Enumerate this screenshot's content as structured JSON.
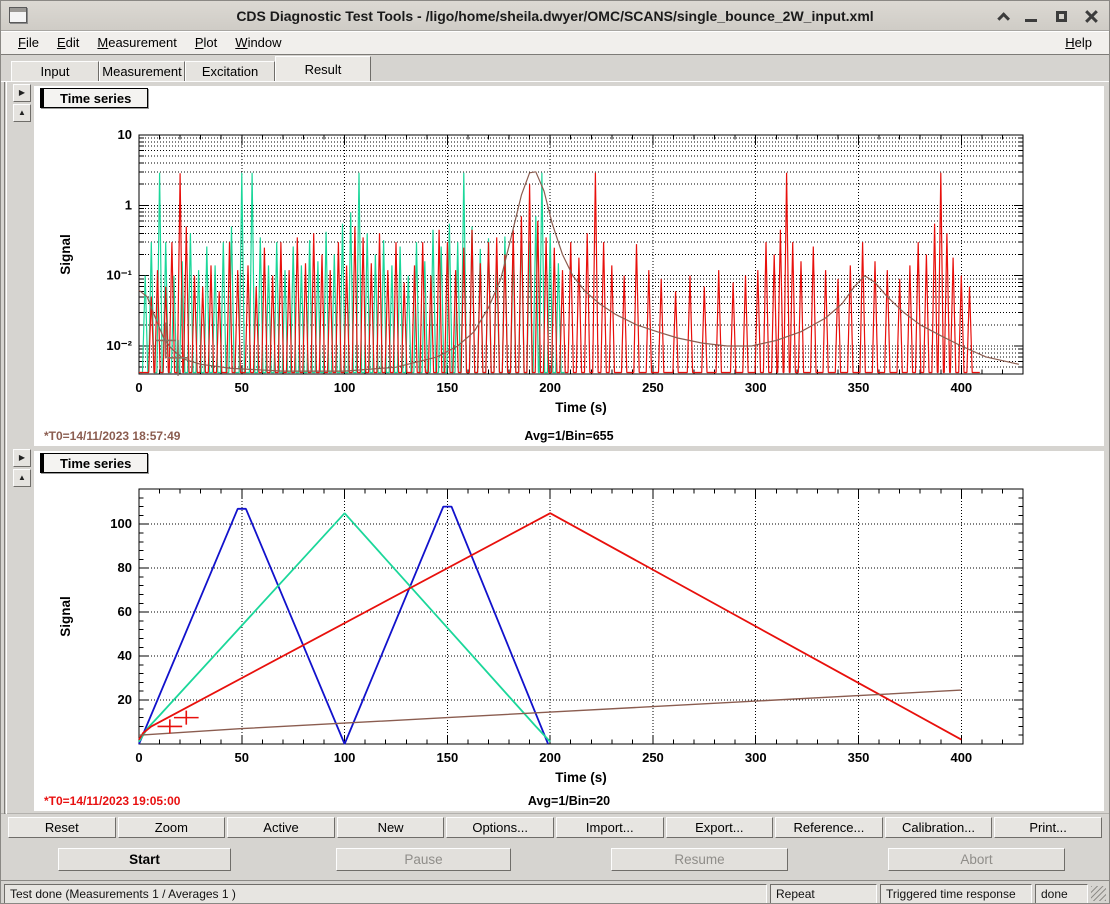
{
  "window": {
    "title": "CDS Diagnostic Test Tools - /ligo/home/sheila.dwyer/OMC/SCANS/single_bounce_2W_input.xml"
  },
  "menu": {
    "items": [
      "File",
      "Edit",
      "Measurement",
      "Plot",
      "Window"
    ],
    "help": "Help"
  },
  "tabs": [
    {
      "label": "Input",
      "active": false
    },
    {
      "label": "Measurement",
      "active": false
    },
    {
      "label": "Excitation",
      "active": false
    },
    {
      "label": "Result",
      "active": true
    }
  ],
  "panels": [
    {
      "header": "Time series",
      "footer_t0": "*T0=14/11/2023 18:57:49",
      "footer_t0_color": "#8b5d50",
      "footer_avg": "Avg=1/Bin=655"
    },
    {
      "header": "Time series",
      "footer_t0": "*T0=14/11/2023 19:05:00",
      "footer_t0_color": "#e81010",
      "footer_avg": "Avg=1/Bin=20"
    }
  ],
  "toolbar": {
    "buttons": [
      "Reset",
      "Zoom",
      "Active",
      "New",
      "Options...",
      "Import...",
      "Export...",
      "Reference...",
      "Calibration...",
      "Print..."
    ]
  },
  "controls": {
    "start": "Start",
    "pause": "Pause",
    "resume": "Resume",
    "abort": "Abort"
  },
  "statusbar": {
    "message": "Test done (Measurements 1 / Averages 1 )",
    "repeat": "Repeat",
    "mode": "Triggered time response",
    "state": "done"
  },
  "colors": {
    "red": "#e8100c",
    "teal": "#1bd79a",
    "blue": "#1212cc",
    "brown": "#8b5d50"
  },
  "chart_data": [
    {
      "type": "line",
      "title": "Time series",
      "xlabel": "Time (s)",
      "ylabel": "Signal",
      "yscale": "log",
      "xlim": [
        0,
        430
      ],
      "ylim": [
        0.004,
        10
      ],
      "grid": true,
      "xticks": [
        0,
        50,
        100,
        150,
        200,
        250,
        300,
        350,
        400
      ],
      "yticks": [
        {
          "v": 10,
          "label": "10"
        },
        {
          "v": 1,
          "label": "1"
        },
        {
          "v": 0.1,
          "label": "10⁻¹"
        },
        {
          "v": 0.01,
          "label": "10⁻²"
        }
      ],
      "series": [
        {
          "name": "excitation-teal",
          "color": "#1bd79a",
          "baseline": 0.0042,
          "halfwidth": 1.3,
          "xend": 207,
          "spikes": [
            [
              3,
              0.1
            ],
            [
              6,
              0.3
            ],
            [
              10,
              2.9
            ],
            [
              13,
              0.3
            ],
            [
              17,
              0.1
            ],
            [
              21,
              0.16
            ],
            [
              25,
              0.4
            ],
            [
              29,
              0.12
            ],
            [
              33,
              0.26
            ],
            [
              37,
              0.14
            ],
            [
              41,
              0.3
            ],
            [
              45,
              0.5
            ],
            [
              50,
              2.9
            ],
            [
              55,
              2.9
            ],
            [
              59,
              0.35
            ],
            [
              63,
              0.14
            ],
            [
              67,
              0.3
            ],
            [
              71,
              0.12
            ],
            [
              75,
              0.26
            ],
            [
              79,
              0.14
            ],
            [
              83,
              0.32
            ],
            [
              87,
              0.16
            ],
            [
              91,
              0.42
            ],
            [
              95,
              0.2
            ],
            [
              99,
              0.55
            ],
            [
              103,
              0.8
            ],
            [
              107,
              2.9
            ],
            [
              111,
              0.4
            ],
            [
              115,
              0.2
            ],
            [
              119,
              0.32
            ],
            [
              123,
              0.14
            ],
            [
              127,
              0.26
            ],
            [
              131,
              0.1
            ],
            [
              135,
              0.3
            ],
            [
              139,
              0.16
            ],
            [
              143,
              0.45
            ],
            [
              147,
              0.26
            ],
            [
              151,
              0.55
            ],
            [
              155,
              0.3
            ],
            [
              158,
              2.9
            ],
            [
              162,
              0.5
            ],
            [
              166,
              0.24
            ],
            [
              170,
              0.34
            ],
            [
              174,
              0.16
            ],
            [
              178,
              0.36
            ],
            [
              182,
              0.2
            ],
            [
              186,
              0.5
            ],
            [
              190,
              0.3
            ],
            [
              193,
              0.7
            ],
            [
              196,
              2.9
            ],
            [
              200,
              0.4
            ],
            [
              204,
              0.15
            ]
          ]
        },
        {
          "name": "signal-red",
          "color": "#e8100c",
          "baseline": 0.0042,
          "halfwidth": 1.3,
          "xend": 409,
          "spikes": [
            [
              6,
              0.05
            ],
            [
              9,
              0.12
            ],
            [
              13,
              0.07
            ],
            [
              16,
              0.3
            ],
            [
              20,
              2.85
            ],
            [
              23,
              0.5
            ],
            [
              27,
              0.1
            ],
            [
              31,
              0.07
            ],
            [
              35,
              0.14
            ],
            [
              39,
              0.06
            ],
            [
              44,
              0.3
            ],
            [
              48,
              0.12
            ],
            [
              53,
              0.14
            ],
            [
              57,
              0.07
            ],
            [
              61,
              0.25
            ],
            [
              65,
              0.1
            ],
            [
              69,
              0.3
            ],
            [
              73,
              0.12
            ],
            [
              77,
              0.35
            ],
            [
              81,
              0.15
            ],
            [
              85,
              0.4
            ],
            [
              89,
              0.2
            ],
            [
              93,
              0.12
            ],
            [
              97,
              0.3
            ],
            [
              101,
              0.14
            ],
            [
              105,
              0.5
            ],
            [
              109,
              0.35
            ],
            [
              113,
              0.15
            ],
            [
              117,
              0.4
            ],
            [
              121,
              0.12
            ],
            [
              125,
              0.3
            ],
            [
              129,
              0.08
            ],
            [
              134,
              0.14
            ],
            [
              138,
              0.3
            ],
            [
              142,
              0.1
            ],
            [
              146,
              0.45
            ],
            [
              150,
              0.3
            ],
            [
              154,
              0.12
            ],
            [
              158,
              0.25
            ],
            [
              162,
              0.45
            ],
            [
              166,
              0.15
            ],
            [
              170,
              0.3
            ],
            [
              174,
              0.35
            ],
            [
              178,
              0.2
            ],
            [
              182,
              0.45
            ],
            [
              186,
              0.7
            ],
            [
              190,
              2.0
            ],
            [
              194,
              0.6
            ],
            [
              198,
              0.35
            ],
            [
              202,
              0.25
            ],
            [
              206,
              0.12
            ],
            [
              210,
              0.3
            ],
            [
              214,
              0.18
            ],
            [
              218,
              0.4
            ],
            [
              222,
              2.9
            ],
            [
              226,
              0.3
            ],
            [
              230,
              0.14
            ],
            [
              236,
              0.1
            ],
            [
              242,
              0.28
            ],
            [
              248,
              0.12
            ],
            [
              254,
              0.09
            ],
            [
              261,
              0.06
            ],
            [
              268,
              0.1
            ],
            [
              275,
              0.07
            ],
            [
              282,
              0.12
            ],
            [
              289,
              0.08
            ],
            [
              295,
              0.1
            ],
            [
              301,
              0.12
            ],
            [
              305,
              0.3
            ],
            [
              309,
              0.2
            ],
            [
              312,
              0.45
            ],
            [
              315,
              2.9
            ],
            [
              318,
              0.3
            ],
            [
              322,
              0.16
            ],
            [
              328,
              0.26
            ],
            [
              334,
              0.12
            ],
            [
              340,
              0.09
            ],
            [
              346,
              0.14
            ],
            [
              352,
              0.3
            ],
            [
              358,
              0.16
            ],
            [
              364,
              0.12
            ],
            [
              370,
              0.09
            ],
            [
              375,
              0.14
            ],
            [
              379,
              0.3
            ],
            [
              383,
              0.2
            ],
            [
              387,
              0.55
            ],
            [
              390,
              2.9
            ],
            [
              393,
              0.4
            ],
            [
              396,
              0.18
            ],
            [
              400,
              0.1
            ],
            [
              404,
              0.07
            ]
          ]
        }
      ],
      "curves": [
        {
          "name": "reference-brown",
          "color": "#8b5d50",
          "points": [
            [
              0,
              0.062
            ],
            [
              4,
              0.05
            ],
            [
              8,
              0.025
            ],
            [
              12,
              0.013
            ],
            [
              16,
              0.009
            ],
            [
              22,
              0.0065
            ],
            [
              30,
              0.0055
            ],
            [
              45,
              0.0048
            ],
            [
              70,
              0.0044
            ],
            [
              100,
              0.0044
            ],
            [
              125,
              0.005
            ],
            [
              145,
              0.007
            ],
            [
              155,
              0.01
            ],
            [
              163,
              0.016
            ],
            [
              170,
              0.035
            ],
            [
              176,
              0.09
            ],
            [
              181,
              0.35
            ],
            [
              186,
              1.4
            ],
            [
              190,
              2.9
            ],
            [
              193,
              3.0
            ],
            [
              197,
              1.6
            ],
            [
              201,
              0.55
            ],
            [
              206,
              0.2
            ],
            [
              211,
              0.1
            ],
            [
              217,
              0.06
            ],
            [
              224,
              0.04
            ],
            [
              232,
              0.028
            ],
            [
              242,
              0.02
            ],
            [
              252,
              0.016
            ],
            [
              262,
              0.013
            ],
            [
              274,
              0.011
            ],
            [
              286,
              0.01
            ],
            [
              298,
              0.01
            ],
            [
              310,
              0.012
            ],
            [
              322,
              0.016
            ],
            [
              334,
              0.025
            ],
            [
              342,
              0.04
            ],
            [
              348,
              0.07
            ],
            [
              353,
              0.1
            ],
            [
              358,
              0.08
            ],
            [
              364,
              0.05
            ],
            [
              372,
              0.03
            ],
            [
              380,
              0.02
            ],
            [
              390,
              0.014
            ],
            [
              400,
              0.01
            ],
            [
              412,
              0.007
            ],
            [
              422,
              0.006
            ],
            [
              428,
              0.0055
            ]
          ]
        }
      ],
      "markers": {
        "color": "#8b6f5e",
        "dx": 5,
        "dyf": 1.8,
        "points": [
          [
            13,
            0.012
          ],
          [
            19,
            0.0068
          ]
        ]
      }
    },
    {
      "type": "line",
      "title": "Time series",
      "xlabel": "Time (s)",
      "ylabel": "Signal",
      "yscale": "linear",
      "xlim": [
        0,
        430
      ],
      "ylim": [
        0,
        116
      ],
      "grid": true,
      "xticks": [
        0,
        50,
        100,
        150,
        200,
        250,
        300,
        350,
        400
      ],
      "yticks": [
        {
          "v": 20,
          "label": "20"
        },
        {
          "v": 40,
          "label": "40"
        },
        {
          "v": 60,
          "label": "60"
        },
        {
          "v": 80,
          "label": "80"
        },
        {
          "v": 100,
          "label": "100"
        }
      ],
      "series": [
        {
          "name": "ramp-blue",
          "color": "#1212cc",
          "points": [
            [
              0,
              0
            ],
            [
              48,
              107
            ],
            [
              52,
              107
            ],
            [
              100,
              0
            ],
            [
              148,
              108
            ],
            [
              152,
              108
            ],
            [
              199,
              0
            ]
          ]
        },
        {
          "name": "ramp-teal",
          "color": "#1bd79a",
          "points": [
            [
              0,
              1
            ],
            [
              4,
              7
            ],
            [
              10,
              13
            ],
            [
              100,
              105
            ],
            [
              193,
              8
            ],
            [
              200,
              1
            ]
          ]
        },
        {
          "name": "ramp-red",
          "color": "#e8100c",
          "points": [
            [
              0,
              2
            ],
            [
              2,
              5
            ],
            [
              6,
              8
            ],
            [
              12,
              11
            ],
            [
              200,
              105
            ],
            [
              400,
              2
            ]
          ]
        },
        {
          "name": "reference-brown",
          "color": "#8b5d50",
          "points": [
            [
              0,
              4
            ],
            [
              50,
              7
            ],
            [
              100,
              9.5
            ],
            [
              150,
              12
            ],
            [
              200,
              14.5
            ],
            [
              250,
              17
            ],
            [
              300,
              19.5
            ],
            [
              350,
              22
            ],
            [
              400,
              24.5
            ]
          ]
        }
      ],
      "markers": {
        "color": "#e8100c",
        "dx": 6,
        "dy": 3.2,
        "points": [
          [
            15,
            8
          ],
          [
            23,
            12
          ]
        ]
      }
    }
  ]
}
